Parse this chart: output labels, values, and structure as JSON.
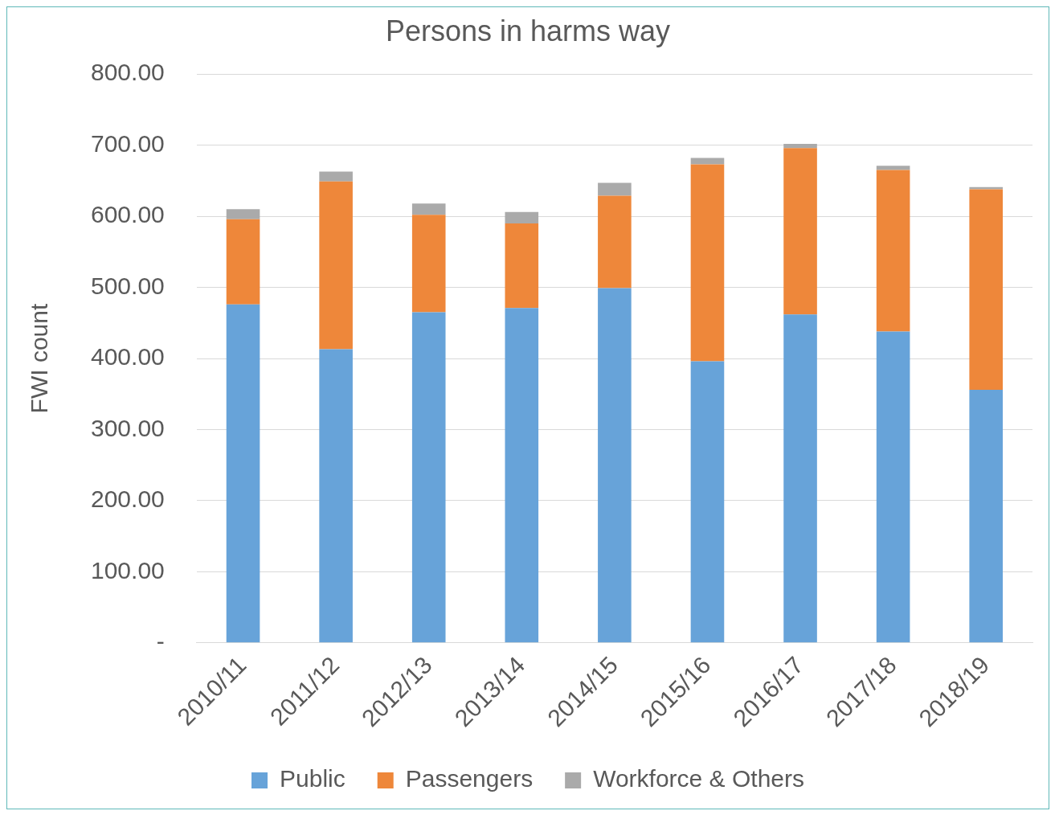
{
  "chart_data": {
    "type": "bar",
    "title": "Persons in harms way",
    "ylabel": "FWI count",
    "stacked": true,
    "categories": [
      "2010/11",
      "2011/12",
      "2012/13",
      "2013/14",
      "2014/15",
      "2015/16",
      "2016/17",
      "2017/18",
      "2018/19"
    ],
    "series": [
      {
        "name": "Public",
        "color": "#67a3d9",
        "values": [
          476,
          413,
          465,
          471,
          499,
          396,
          462,
          438,
          356
        ]
      },
      {
        "name": "Passengers",
        "color": "#ee873a",
        "values": [
          120,
          236,
          137,
          119,
          130,
          277,
          234,
          227,
          282
        ]
      },
      {
        "name": "Workforce & Others",
        "color": "#aaaaaa",
        "values": [
          14,
          14,
          16,
          16,
          18,
          9,
          6,
          6,
          3
        ]
      }
    ],
    "ylim": [
      0,
      800
    ],
    "yticks": [
      {
        "value": 0,
        "label": "-"
      },
      {
        "value": 100,
        "label": "100.00"
      },
      {
        "value": 200,
        "label": "200.00"
      },
      {
        "value": 300,
        "label": "300.00"
      },
      {
        "value": 400,
        "label": "400.00"
      },
      {
        "value": 500,
        "label": "500.00"
      },
      {
        "value": 600,
        "label": "600.00"
      },
      {
        "value": 700,
        "label": "700.00"
      },
      {
        "value": 800,
        "label": "800.00"
      }
    ],
    "grid": "y",
    "legend": "bottom"
  }
}
